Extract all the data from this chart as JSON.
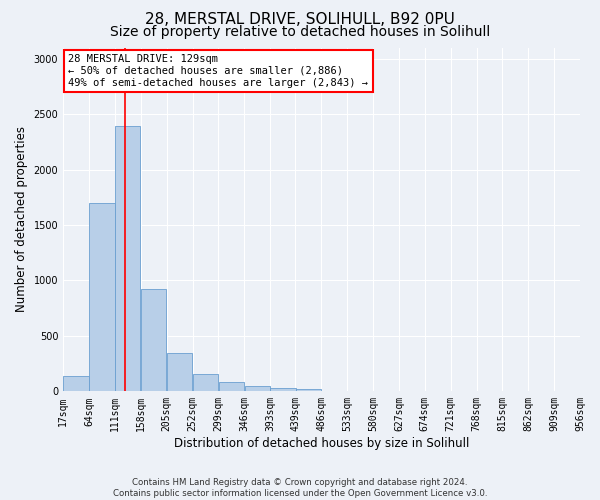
{
  "title_line1": "28, MERSTAL DRIVE, SOLIHULL, B92 0PU",
  "title_line2": "Size of property relative to detached houses in Solihull",
  "xlabel": "Distribution of detached houses by size in Solihull",
  "ylabel": "Number of detached properties",
  "bar_color": "#b8cfe8",
  "bar_edge_color": "#6a9fd0",
  "red_line_x": 129,
  "annotation_text": "28 MERSTAL DRIVE: 129sqm\n← 50% of detached houses are smaller (2,886)\n49% of semi-detached houses are larger (2,843) →",
  "bins": [
    17,
    64,
    111,
    158,
    205,
    252,
    299,
    346,
    393,
    439,
    486,
    533,
    580,
    627,
    674,
    721,
    768,
    815,
    862,
    909,
    956
  ],
  "values": [
    140,
    1700,
    2390,
    920,
    350,
    155,
    80,
    48,
    30,
    20,
    5,
    5,
    3,
    0,
    0,
    0,
    0,
    0,
    0,
    0
  ],
  "ylim": [
    0,
    3100
  ],
  "yticks": [
    0,
    500,
    1000,
    1500,
    2000,
    2500,
    3000
  ],
  "footer": "Contains HM Land Registry data © Crown copyright and database right 2024.\nContains public sector information licensed under the Open Government Licence v3.0.",
  "background_color": "#edf1f7",
  "grid_color": "#ffffff",
  "title_fontsize": 11,
  "subtitle_fontsize": 10,
  "axis_label_fontsize": 8.5,
  "tick_fontsize": 7,
  "annotation_fontsize": 7.5
}
